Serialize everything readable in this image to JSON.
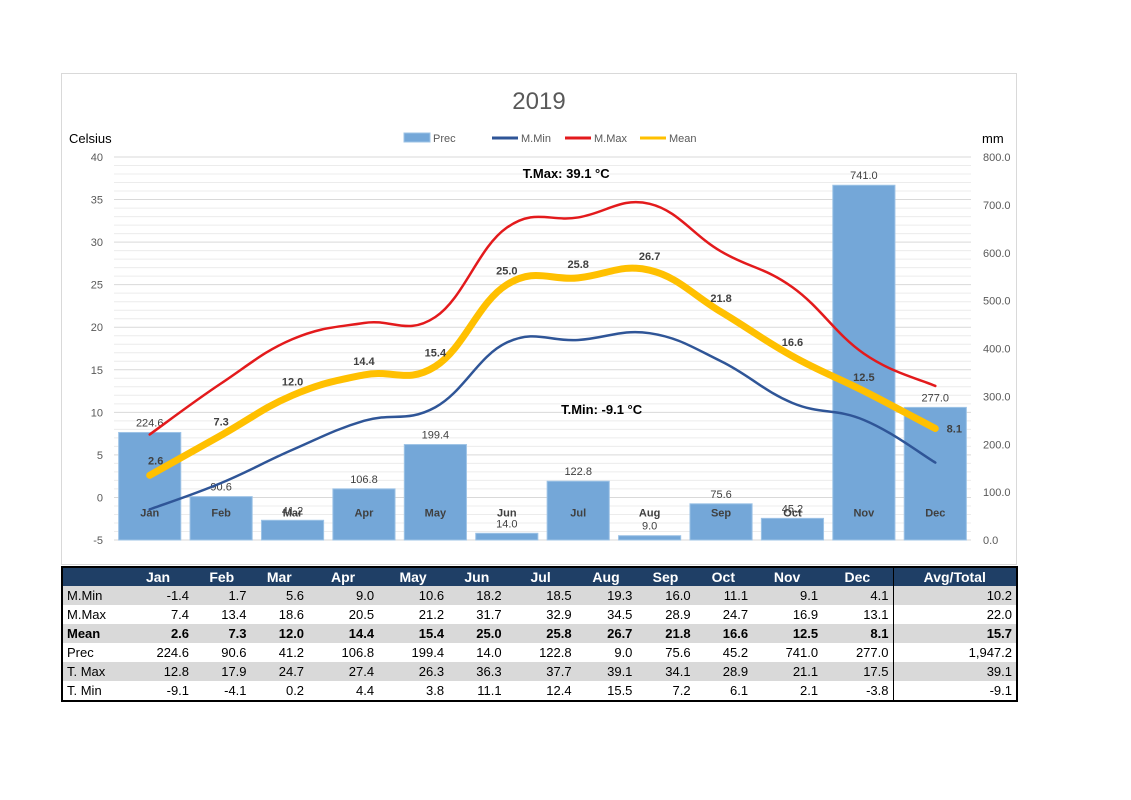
{
  "colors": {
    "prec": "#74a7d8",
    "min": "#2f5597",
    "max": "#e31a1c",
    "mean": "#ffc000",
    "header": "#1f3f66"
  },
  "chart_data": {
    "type": "bar",
    "title": "2019",
    "ylabel": "Celsius",
    "y2label": "mm",
    "ylim": [
      -5,
      40
    ],
    "y2lim": [
      0,
      800
    ],
    "yticks": [
      "-5",
      "0",
      "5",
      "10",
      "15",
      "20",
      "25",
      "30",
      "35",
      "40"
    ],
    "y2ticks": [
      "0.0",
      "100.0",
      "200.0",
      "300.0",
      "400.0",
      "500.0",
      "600.0",
      "700.0",
      "800.0"
    ],
    "categories": [
      "Jan",
      "Feb",
      "Mar",
      "Apr",
      "May",
      "Jun",
      "Jul",
      "Aug",
      "Sep",
      "Oct",
      "Nov",
      "Dec"
    ],
    "legend": [
      "Prec",
      "M.Min",
      "M.Max",
      "Mean"
    ],
    "legend_position": "top",
    "grid": true,
    "series": [
      {
        "name": "Prec",
        "type": "bar",
        "axis": "right",
        "values": [
          224.6,
          90.6,
          41.2,
          106.8,
          199.4,
          14.0,
          122.8,
          9.0,
          75.6,
          45.2,
          741.0,
          277.0
        ],
        "labels": [
          "224.6",
          "90.6",
          "41.2",
          "106.8",
          "199.4",
          "14.0",
          "122.8",
          "9.0",
          "75.6",
          "45.2",
          "741.0",
          "277.0"
        ]
      },
      {
        "name": "M.Min",
        "type": "line",
        "axis": "left",
        "values": [
          -1.4,
          1.7,
          5.6,
          9.0,
          10.6,
          18.2,
          18.5,
          19.3,
          16.0,
          11.1,
          9.1,
          4.1
        ]
      },
      {
        "name": "M.Max",
        "type": "line",
        "axis": "left",
        "values": [
          7.4,
          13.4,
          18.6,
          20.5,
          21.2,
          31.7,
          32.9,
          34.5,
          28.9,
          24.7,
          16.9,
          13.1
        ]
      },
      {
        "name": "Mean",
        "type": "line",
        "axis": "left",
        "values": [
          2.6,
          7.3,
          12.0,
          14.4,
          15.4,
          25.0,
          25.8,
          26.7,
          21.8,
          16.6,
          12.5,
          8.1
        ],
        "labels": [
          "2.6",
          "7.3",
          "12.0",
          "14.4",
          "15.4",
          "25.0",
          "25.8",
          "26.7",
          "21.8",
          "16.6",
          "12.5",
          "8.1"
        ]
      }
    ],
    "annotations": [
      {
        "text": "T.Max: 39.1 °C",
        "x": "Jul",
        "y": 38.0
      },
      {
        "text": "T.Min: -9.1 °C",
        "x": "Aug",
        "y": 10.3
      }
    ]
  },
  "table": {
    "headers": [
      "",
      "Jan",
      "Feb",
      "Mar",
      "Apr",
      "May",
      "Jun",
      "Jul",
      "Aug",
      "Sep",
      "Oct",
      "Nov",
      "Dec",
      "Avg/Total"
    ],
    "rows": [
      {
        "label": "M.Min",
        "shade": true,
        "bold": false,
        "cells": [
          "-1.4",
          "1.7",
          "5.6",
          "9.0",
          "10.6",
          "18.2",
          "18.5",
          "19.3",
          "16.0",
          "11.1",
          "9.1",
          "4.1",
          "10.2"
        ]
      },
      {
        "label": "M.Max",
        "shade": false,
        "bold": false,
        "cells": [
          "7.4",
          "13.4",
          "18.6",
          "20.5",
          "21.2",
          "31.7",
          "32.9",
          "34.5",
          "28.9",
          "24.7",
          "16.9",
          "13.1",
          "22.0"
        ]
      },
      {
        "label": "Mean",
        "shade": true,
        "bold": true,
        "cells": [
          "2.6",
          "7.3",
          "12.0",
          "14.4",
          "15.4",
          "25.0",
          "25.8",
          "26.7",
          "21.8",
          "16.6",
          "12.5",
          "8.1",
          "15.7"
        ]
      },
      {
        "label": "Prec",
        "shade": false,
        "bold": false,
        "cells": [
          "224.6",
          "90.6",
          "41.2",
          "106.8",
          "199.4",
          "14.0",
          "122.8",
          "9.0",
          "75.6",
          "45.2",
          "741.0",
          "277.0",
          "1,947.2"
        ]
      },
      {
        "label": "T. Max",
        "shade": true,
        "bold": false,
        "cells": [
          "12.8",
          "17.9",
          "24.7",
          "27.4",
          "26.3",
          "36.3",
          "37.7",
          "39.1",
          "34.1",
          "28.9",
          "21.1",
          "17.5",
          "39.1"
        ]
      },
      {
        "label": "T. Min",
        "shade": false,
        "bold": false,
        "cells": [
          "-9.1",
          "-4.1",
          "0.2",
          "4.4",
          "3.8",
          "11.1",
          "12.4",
          "15.5",
          "7.2",
          "6.1",
          "2.1",
          "-3.8",
          "-9.1"
        ]
      }
    ]
  }
}
